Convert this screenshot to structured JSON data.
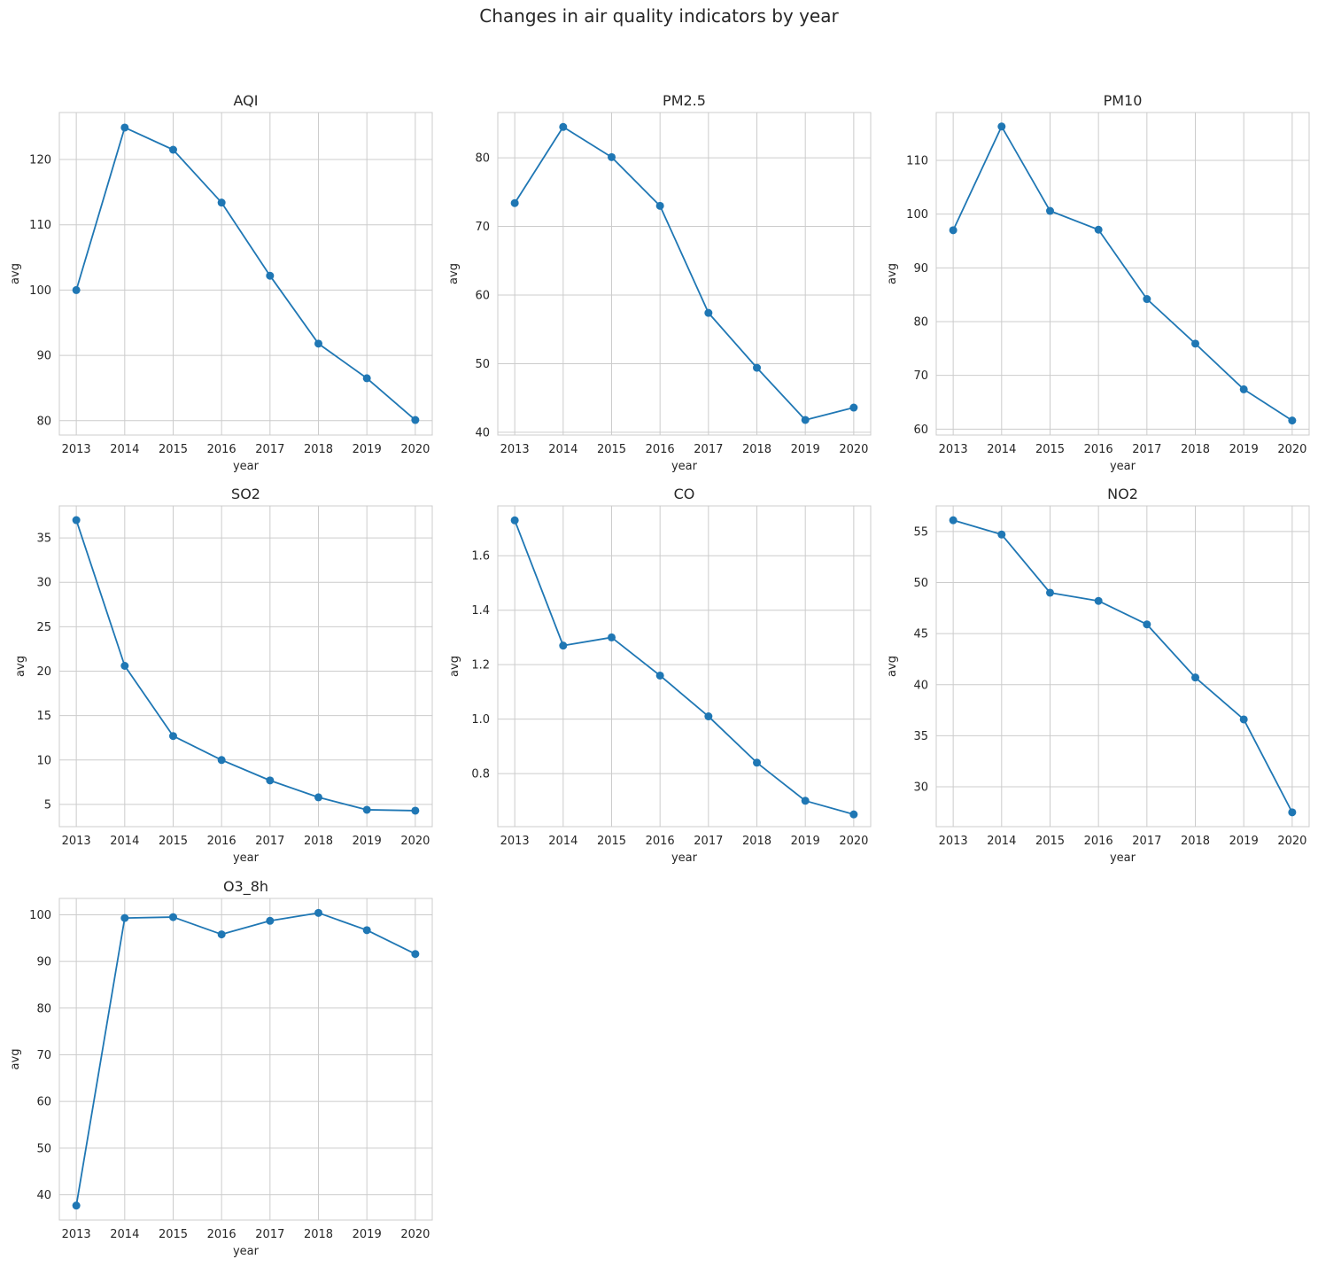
{
  "figure": {
    "title": "Changes in air quality indicators by year"
  },
  "colors": {
    "line": "#1f77b4",
    "grid": "#cccccc",
    "text": "#262626"
  },
  "chart_data": [
    {
      "type": "line",
      "title": "AQI",
      "xlabel": "year",
      "ylabel": "avg",
      "x": [
        "2013",
        "2014",
        "2015",
        "2016",
        "2017",
        "2018",
        "2019",
        "2020"
      ],
      "y": [
        100.0,
        124.9,
        121.5,
        113.4,
        102.2,
        91.8,
        86.5,
        80.1
      ],
      "ylim": [
        77.8,
        127.2
      ],
      "yticks": [
        80,
        90,
        100,
        110,
        120
      ],
      "grid": true
    },
    {
      "type": "line",
      "title": "PM2.5",
      "xlabel": "year",
      "ylabel": "avg",
      "x": [
        "2013",
        "2014",
        "2015",
        "2016",
        "2017",
        "2018",
        "2019",
        "2020"
      ],
      "y": [
        73.4,
        84.5,
        80.1,
        73.0,
        57.4,
        49.4,
        41.8,
        43.6
      ],
      "ylim": [
        39.6,
        86.6
      ],
      "yticks": [
        40,
        50,
        60,
        70,
        80
      ],
      "grid": true
    },
    {
      "type": "line",
      "title": "PM10",
      "xlabel": "year",
      "ylabel": "avg",
      "x": [
        "2013",
        "2014",
        "2015",
        "2016",
        "2017",
        "2018",
        "2019",
        "2020"
      ],
      "y": [
        97.0,
        116.3,
        100.6,
        97.1,
        84.2,
        75.9,
        67.4,
        61.6
      ],
      "ylim": [
        58.9,
        118.9
      ],
      "yticks": [
        60,
        70,
        80,
        90,
        100,
        110
      ],
      "grid": true
    },
    {
      "type": "line",
      "title": "SO2",
      "xlabel": "year",
      "ylabel": "avg",
      "x": [
        "2013",
        "2014",
        "2015",
        "2016",
        "2017",
        "2018",
        "2019",
        "2020"
      ],
      "y": [
        37.0,
        20.6,
        12.7,
        10.0,
        7.7,
        5.8,
        4.4,
        4.3
      ],
      "ylim": [
        2.5,
        38.6
      ],
      "yticks": [
        5,
        10,
        15,
        20,
        25,
        30,
        35
      ],
      "grid": true
    },
    {
      "type": "line",
      "title": "CO",
      "xlabel": "year",
      "ylabel": "avg",
      "x": [
        "2013",
        "2014",
        "2015",
        "2016",
        "2017",
        "2018",
        "2019",
        "2020"
      ],
      "y": [
        1.73,
        1.27,
        1.3,
        1.16,
        1.01,
        0.84,
        0.7,
        0.65
      ],
      "ylim": [
        0.605,
        1.783
      ],
      "yticks": [
        0.8,
        1.0,
        1.2,
        1.4,
        1.6
      ],
      "ytick_decimals": 1,
      "grid": true
    },
    {
      "type": "line",
      "title": "NO2",
      "xlabel": "year",
      "ylabel": "avg",
      "x": [
        "2013",
        "2014",
        "2015",
        "2016",
        "2017",
        "2018",
        "2019",
        "2020"
      ],
      "y": [
        56.1,
        54.7,
        49.0,
        48.2,
        45.9,
        40.7,
        36.6,
        27.5
      ],
      "ylim": [
        26.1,
        57.5
      ],
      "yticks": [
        30,
        35,
        40,
        45,
        50,
        55
      ],
      "grid": true
    },
    {
      "type": "line",
      "title": "O3_8h",
      "xlabel": "year",
      "ylabel": "avg",
      "x": [
        "2013",
        "2014",
        "2015",
        "2016",
        "2017",
        "2018",
        "2019",
        "2020"
      ],
      "y": [
        37.7,
        99.3,
        99.5,
        95.8,
        98.7,
        100.4,
        96.7,
        91.6
      ],
      "ylim": [
        34.6,
        103.5
      ],
      "yticks": [
        40,
        50,
        60,
        70,
        80,
        90,
        100
      ],
      "grid": true
    }
  ]
}
